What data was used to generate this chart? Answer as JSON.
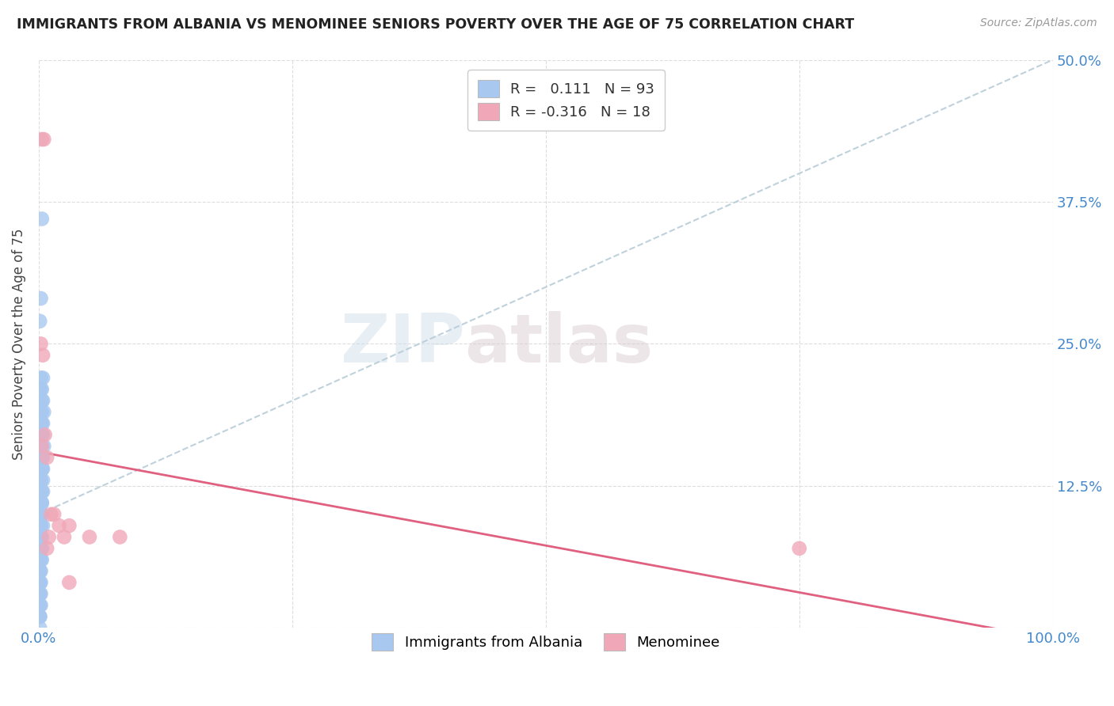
{
  "title": "IMMIGRANTS FROM ALBANIA VS MENOMINEE SENIORS POVERTY OVER THE AGE OF 75 CORRELATION CHART",
  "source": "Source: ZipAtlas.com",
  "xlabel_blue": "Immigrants from Albania",
  "xlabel_pink": "Menominee",
  "ylabel": "Seniors Poverty Over the Age of 75",
  "xlim": [
    0.0,
    1.0
  ],
  "ylim": [
    0.0,
    0.5
  ],
  "xticks": [
    0.0,
    0.25,
    0.5,
    0.75,
    1.0
  ],
  "xticklabels": [
    "0.0%",
    "",
    "",
    "",
    "100.0%"
  ],
  "yticks": [
    0.0,
    0.125,
    0.25,
    0.375,
    0.5
  ],
  "yticklabels": [
    "",
    "12.5%",
    "25.0%",
    "37.5%",
    "50.0%"
  ],
  "blue_R": 0.111,
  "blue_N": 93,
  "pink_R": -0.316,
  "pink_N": 18,
  "blue_color": "#a8c8f0",
  "pink_color": "#f0a8b8",
  "pink_line_color": "#e06080",
  "trend_line_color": "#b8ccd8",
  "watermark_zip": "ZIP",
  "watermark_atlas": "atlas",
  "blue_scatter_x": [
    0.002,
    0.003,
    0.001,
    0.004,
    0.002,
    0.001,
    0.003,
    0.002,
    0.001,
    0.005,
    0.004,
    0.003,
    0.002,
    0.001,
    0.004,
    0.003,
    0.002,
    0.001,
    0.003,
    0.002,
    0.001,
    0.004,
    0.003,
    0.002,
    0.001,
    0.005,
    0.003,
    0.002,
    0.001,
    0.004,
    0.003,
    0.002,
    0.001,
    0.003,
    0.002,
    0.001,
    0.004,
    0.003,
    0.002,
    0.001,
    0.003,
    0.002,
    0.001,
    0.004,
    0.003,
    0.002,
    0.001,
    0.003,
    0.002,
    0.001,
    0.003,
    0.002,
    0.001,
    0.004,
    0.003,
    0.002,
    0.001,
    0.003,
    0.002,
    0.001,
    0.003,
    0.002,
    0.001,
    0.004,
    0.003,
    0.002,
    0.001,
    0.003,
    0.002,
    0.001,
    0.003,
    0.002,
    0.001,
    0.002,
    0.001,
    0.003,
    0.002,
    0.001,
    0.002,
    0.001,
    0.002,
    0.001,
    0.002,
    0.001,
    0.002,
    0.001,
    0.001,
    0.001,
    0.001,
    0.001,
    0.001,
    0.001,
    0.001
  ],
  "blue_scatter_y": [
    0.29,
    0.36,
    0.27,
    0.22,
    0.2,
    0.21,
    0.21,
    0.22,
    0.19,
    0.19,
    0.2,
    0.2,
    0.21,
    0.2,
    0.18,
    0.19,
    0.2,
    0.19,
    0.17,
    0.18,
    0.18,
    0.17,
    0.18,
    0.19,
    0.17,
    0.16,
    0.17,
    0.18,
    0.16,
    0.15,
    0.16,
    0.17,
    0.15,
    0.15,
    0.16,
    0.14,
    0.14,
    0.15,
    0.14,
    0.13,
    0.14,
    0.13,
    0.12,
    0.13,
    0.14,
    0.13,
    0.12,
    0.12,
    0.13,
    0.11,
    0.12,
    0.11,
    0.11,
    0.12,
    0.11,
    0.12,
    0.1,
    0.11,
    0.1,
    0.09,
    0.1,
    0.09,
    0.09,
    0.09,
    0.1,
    0.09,
    0.08,
    0.08,
    0.09,
    0.07,
    0.07,
    0.08,
    0.07,
    0.06,
    0.06,
    0.06,
    0.07,
    0.05,
    0.05,
    0.04,
    0.04,
    0.03,
    0.03,
    0.02,
    0.02,
    0.01,
    0.05,
    0.04,
    0.03,
    0.02,
    0.01,
    0.0,
    0.01
  ],
  "pink_scatter_x": [
    0.003,
    0.005,
    0.002,
    0.004,
    0.006,
    0.003,
    0.008,
    0.012,
    0.015,
    0.02,
    0.025,
    0.03,
    0.008,
    0.01,
    0.05,
    0.08,
    0.03,
    0.75
  ],
  "pink_scatter_y": [
    0.43,
    0.43,
    0.25,
    0.24,
    0.17,
    0.16,
    0.15,
    0.1,
    0.1,
    0.09,
    0.08,
    0.09,
    0.07,
    0.08,
    0.08,
    0.08,
    0.04,
    0.07
  ],
  "blue_trend_x0": 0.0,
  "blue_trend_x1": 1.0,
  "blue_trend_y0": 0.1,
  "blue_trend_y1": 0.5,
  "pink_trend_x0": 0.0,
  "pink_trend_x1": 1.0,
  "pink_trend_y0": 0.155,
  "pink_trend_y1": -0.01
}
